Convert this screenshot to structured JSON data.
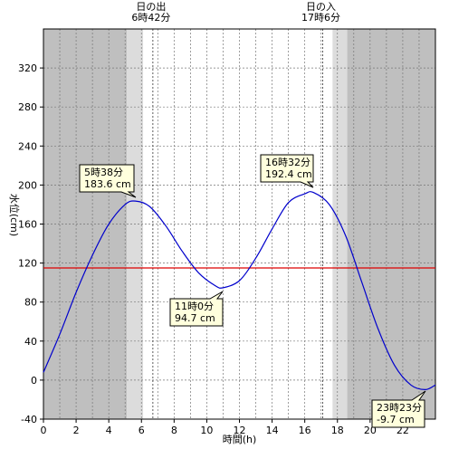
{
  "chart_data": {
    "type": "line",
    "xlabel": "時間(h)",
    "ylabel": "水位(cm)",
    "xlim": [
      0,
      24
    ],
    "ylim": [
      -40,
      360
    ],
    "x_ticks": [
      0,
      2,
      4,
      6,
      8,
      10,
      12,
      14,
      16,
      18,
      20,
      22
    ],
    "y_ticks": [
      -40,
      0,
      40,
      80,
      120,
      160,
      200,
      240,
      280,
      320
    ],
    "grid": true,
    "reference_line": {
      "y": 115,
      "color": "#dd0000"
    },
    "sunrise": {
      "label": "日の出",
      "time_text": "6時42分",
      "hour": 6.7
    },
    "sunset": {
      "label": "日の入",
      "time_text": "17時6分",
      "hour": 17.1
    },
    "night_shading": {
      "dark_before": 5.1,
      "twilight_before": [
        5.1,
        6.1
      ],
      "twilight_after": [
        17.7,
        18.6
      ],
      "dark_after": 18.6
    },
    "colors": {
      "night": "#bfbfbf",
      "twilight": "#dcdcdc",
      "line": "#0000cc",
      "ref": "#dd0000"
    },
    "series": [
      {
        "x": [
          0,
          1,
          2,
          3,
          4,
          5,
          5.63,
          6.5,
          7.5,
          8.5,
          9.5,
          10.5,
          11,
          12,
          13,
          14,
          15,
          16,
          16.53,
          17.5,
          18.5,
          19.5,
          20.5,
          21.5,
          22.5,
          23.38,
          24
        ],
        "y": [
          8,
          47,
          90,
          128,
          160,
          180,
          183.6,
          178,
          158,
          132,
          110,
          97,
          94.7,
          102,
          125,
          155,
          182,
          191,
          192.4,
          180,
          148,
          100,
          52,
          15,
          -5,
          -9.7,
          -5
        ]
      }
    ],
    "annotations": [
      {
        "time": "5時38分",
        "value": "183.6 cm"
      },
      {
        "time": "11時0分",
        "value": "94.7 cm"
      },
      {
        "time": "16時32分",
        "value": "192.4 cm"
      },
      {
        "time": "23時23分",
        "value": "-9.7 cm"
      }
    ]
  }
}
